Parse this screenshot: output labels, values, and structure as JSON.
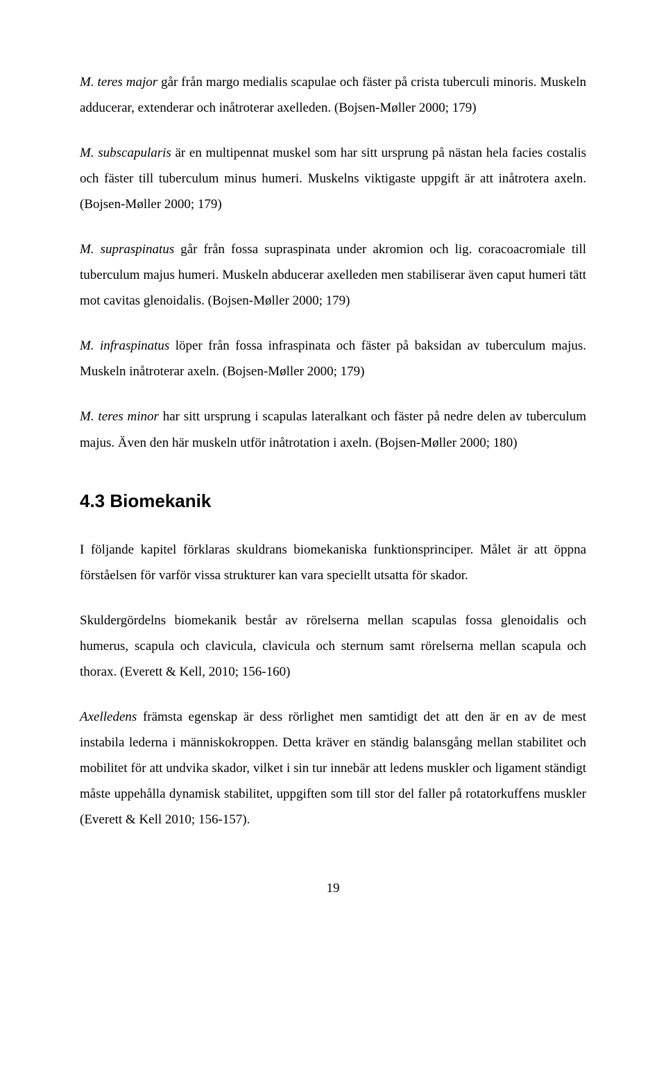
{
  "paragraphs": {
    "p1_a": "M. teres major",
    "p1_b": " går från margo medialis scapulae och fäster på crista tuberculi minoris. Muskeln adducerar, extenderar och inåtroterar axelleden. (Bojsen-Møller 2000; 179)",
    "p2_a": "M. subscapularis",
    "p2_b": " är en multipennat muskel som har sitt ursprung på nästan hela facies costalis och fäster till tuberculum minus humeri. Muskelns viktigaste uppgift är att inåtrotera axeln. (Bojsen-Møller 2000; 179)",
    "p3_a": "M. supraspinatus",
    "p3_b": " går från fossa supraspinata under akromion och lig. coracoacromiale till tuberculum majus humeri. Muskeln abducerar axelleden men stabiliserar även caput humeri tätt mot cavitas glenoidalis. (Bojsen-Møller 2000; 179)",
    "p4_a": "M. infraspinatus",
    "p4_b": " löper från fossa infraspinata och fäster på baksidan av tuberculum majus. Muskeln inåtroterar axeln. (Bojsen-Møller 2000; 179)",
    "p5_a": "M. teres minor",
    "p5_b": " har sitt ursprung i scapulas lateralkant och fäster på nedre delen av tuberculum majus. Även den här muskeln utför inåtrotation i axeln. (Bojsen-Møller 2000; 180)"
  },
  "heading": "4.3  Biomekanik",
  "biomek": {
    "p1": "I följande kapitel förklaras skuldrans biomekaniska funktionsprinciper. Målet är att öppna förståelsen för varför vissa strukturer kan vara speciellt utsatta för skador.",
    "p2": "Skuldergördelns biomekanik består av rörelserna mellan scapulas fossa glenoidalis och humerus, scapula och clavicula, clavicula och sternum samt rörelserna mellan scapula och thorax. (Everett & Kell, 2010; 156-160)",
    "p3_a": "Axelledens",
    "p3_b": " främsta egenskap är dess rörlighet men samtidigt det att den är en av de mest instabila lederna i människokroppen. Detta kräver en ständig balansgång mellan stabilitet och mobilitet för att undvika skador, vilket i sin tur innebär att ledens muskler och ligament ständigt måste uppehålla dynamisk stabilitet, uppgiften som till stor del faller på rotatorkuffens muskler (Everett & Kell 2010; 156-157)."
  },
  "page_number": "19"
}
